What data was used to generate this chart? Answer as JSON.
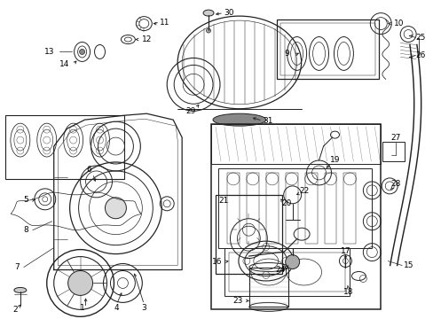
{
  "bg_color": "#ffffff",
  "line_color": "#222222",
  "fig_width": 4.89,
  "fig_height": 3.6,
  "dpi": 100,
  "font_size": 6.5,
  "lw": 0.7
}
